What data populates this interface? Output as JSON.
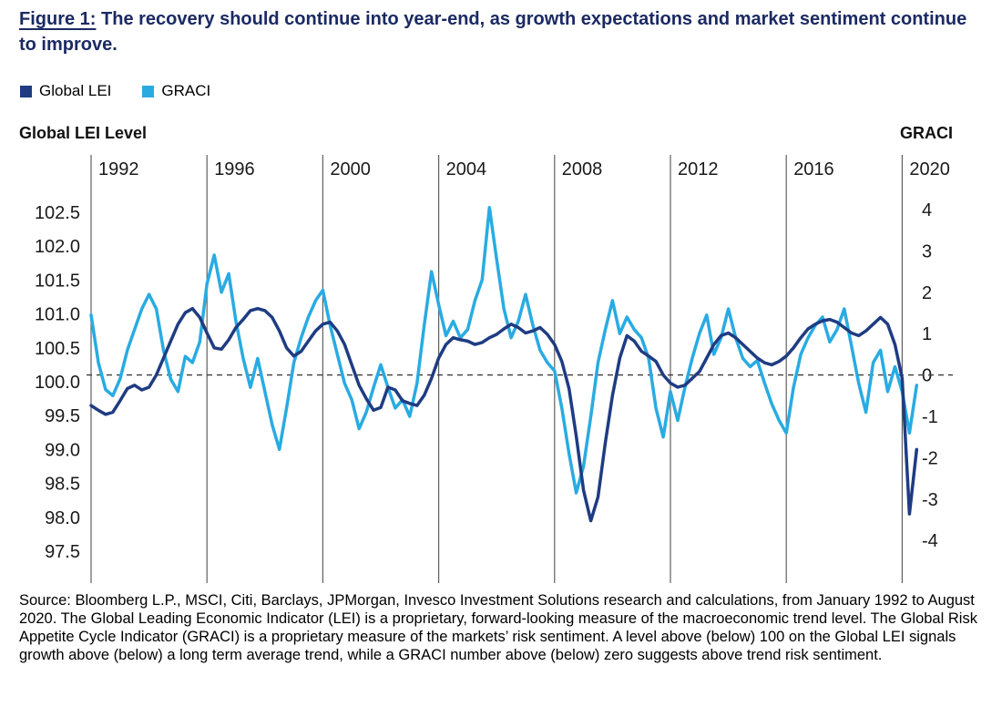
{
  "figure": {
    "title_prefix": "Figure 1:",
    "title_rest": " The recovery should continue into year-end, as growth expectations and market sentiment continue to improve.",
    "source_text": "Source: Bloomberg L.P., MSCI, Citi, Barclays, JPMorgan, Invesco Investment Solutions research and calculations, from January 1992 to August 2020. The Global Leading Economic Indicator (LEI) is a proprietary, forward-looking measure of the macroeconomic trend level. The Global Risk Appetite Cycle Indicator (GRACI) is a proprietary measure of the markets’ risk sentiment. A level above (below) 100 on the Global LEI signals growth above (below) a long term average trend, while a GRACI number above (below) zero suggests above trend risk sentiment."
  },
  "legend": [
    {
      "label": "Global LEI",
      "color": "#1f3c82"
    },
    {
      "label": "GRACI",
      "color": "#29abe2"
    }
  ],
  "colors": {
    "title_navy": "#1b2a63",
    "gridline": "#606060",
    "zero_line": "#3a3a3a",
    "tick_text": "#1a1a1a"
  },
  "chart_data": {
    "type": "line",
    "title": "The recovery should continue into year-end, as growth expectations and market sentiment continue to improve.",
    "x_start": 1992,
    "x_step": 0.25,
    "x_end_label": "August 2020",
    "x_gridlines": [
      1992,
      1996,
      2000,
      2004,
      2008,
      2012,
      2016,
      2020
    ],
    "grid": "vertical-only",
    "legend_position": "top-left",
    "left_axis": {
      "label": "Global LEI Level",
      "tick_labels": [
        "102.5",
        "102.0",
        "101.5",
        "101.0",
        "100.5",
        "100.0",
        "99.5",
        "99.0",
        "98.5",
        "98.0",
        "97.5"
      ],
      "tick_values": [
        102.5,
        102.0,
        101.5,
        101.0,
        100.5,
        100.0,
        99.5,
        99.0,
        98.5,
        98.0,
        97.5
      ],
      "range": [
        97.5,
        102.75
      ]
    },
    "right_axis": {
      "label": "GRACI",
      "tick_labels": [
        "4",
        "3",
        "2",
        "1",
        "0",
        "-1",
        "-2",
        "-3",
        "-4"
      ],
      "tick_values": [
        4,
        3,
        2,
        1,
        0,
        -1,
        -2,
        -3,
        -4
      ],
      "range": [
        -4.5,
        4.5
      ]
    },
    "zero_line": {
      "right_value": 0,
      "left_value": 100.1,
      "style": "dashed"
    },
    "series": [
      {
        "name": "Global LEI",
        "axis": "left",
        "color": "#1f3c82",
        "values": [
          99.65,
          99.58,
          99.52,
          99.55,
          99.72,
          99.9,
          99.95,
          99.88,
          99.92,
          100.1,
          100.35,
          100.6,
          100.85,
          101.02,
          101.08,
          100.95,
          100.72,
          100.5,
          100.48,
          100.62,
          100.8,
          100.92,
          101.05,
          101.08,
          101.05,
          100.95,
          100.75,
          100.5,
          100.38,
          100.45,
          100.6,
          100.75,
          100.85,
          100.88,
          100.75,
          100.55,
          100.25,
          99.95,
          99.75,
          99.58,
          99.62,
          99.92,
          99.88,
          99.72,
          99.68,
          99.65,
          99.8,
          100.05,
          100.35,
          100.55,
          100.65,
          100.62,
          100.6,
          100.55,
          100.58,
          100.65,
          100.7,
          100.78,
          100.85,
          100.8,
          100.72,
          100.75,
          100.8,
          100.7,
          100.55,
          100.3,
          99.9,
          99.2,
          98.4,
          97.95,
          98.3,
          99.1,
          99.8,
          100.35,
          100.68,
          100.6,
          100.45,
          100.38,
          100.3,
          100.1,
          99.98,
          99.92,
          99.95,
          100.05,
          100.15,
          100.35,
          100.55,
          100.68,
          100.72,
          100.65,
          100.55,
          100.45,
          100.35,
          100.28,
          100.25,
          100.3,
          100.38,
          100.5,
          100.65,
          100.78,
          100.85,
          100.9,
          100.92,
          100.88,
          100.8,
          100.72,
          100.68,
          100.75,
          100.85,
          100.95,
          100.85,
          100.55,
          100.05,
          98.05,
          99.0
        ]
      },
      {
        "name": "GRACI",
        "axis": "right",
        "color": "#29abe2",
        "values": [
          1.45,
          0.3,
          -0.35,
          -0.5,
          -0.1,
          0.6,
          1.1,
          1.6,
          1.95,
          1.6,
          0.6,
          -0.1,
          -0.4,
          0.45,
          0.3,
          0.8,
          2.2,
          2.9,
          2.0,
          2.45,
          1.3,
          0.4,
          -0.3,
          0.4,
          -0.4,
          -1.2,
          -1.8,
          -0.8,
          0.3,
          0.9,
          1.4,
          1.8,
          2.05,
          1.2,
          0.5,
          -0.2,
          -0.6,
          -1.3,
          -0.9,
          -0.3,
          0.25,
          -0.3,
          -0.8,
          -0.6,
          -1.0,
          -0.2,
          1.2,
          2.5,
          1.7,
          0.95,
          1.3,
          0.9,
          1.1,
          1.8,
          2.3,
          4.05,
          2.8,
          1.6,
          0.9,
          1.3,
          1.95,
          1.2,
          0.6,
          0.3,
          0.1,
          -0.8,
          -1.9,
          -2.85,
          -2.2,
          -1.0,
          0.3,
          1.1,
          1.8,
          1.0,
          1.4,
          1.1,
          0.9,
          0.4,
          -0.8,
          -1.5,
          -0.4,
          -1.1,
          -0.3,
          0.4,
          1.0,
          1.45,
          0.5,
          0.9,
          1.6,
          0.9,
          0.4,
          0.2,
          0.35,
          -0.2,
          -0.7,
          -1.1,
          -1.4,
          -0.3,
          0.5,
          0.9,
          1.2,
          1.4,
          0.8,
          1.1,
          1.6,
          0.7,
          -0.2,
          -0.9,
          0.3,
          0.6,
          -0.4,
          0.2,
          -0.4,
          -1.4,
          -0.25
        ]
      }
    ]
  }
}
